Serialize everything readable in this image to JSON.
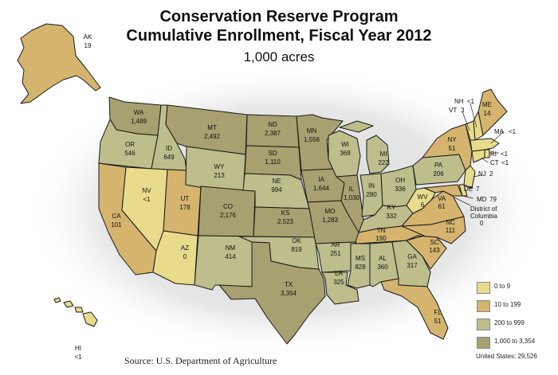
{
  "title": {
    "line1": "Conservation Reserve Program",
    "line2": "Cumulative Enrollment, Fiscal Year 2012",
    "units": "1,000 acres"
  },
  "colors": {
    "c0": "#e8dc8c",
    "c1": "#d5b46e",
    "c2": "#bdbe8c",
    "c3": "#a7a070",
    "stroke": "#1a1a1a",
    "shadow": "#e4e4e4"
  },
  "legend": [
    {
      "label": "0 to 9",
      "color_key": "c0"
    },
    {
      "label": "10 to 199",
      "color_key": "c1"
    },
    {
      "label": "200 to 999",
      "color_key": "c2"
    },
    {
      "label": "1,000 to 3,354",
      "color_key": "c3"
    }
  ],
  "total": "United States: 29,526",
  "source": "Source: U.S. Department of Agriculture",
  "states": {
    "AK": {
      "abbr": "AK",
      "value": "19"
    },
    "HI": {
      "abbr": "HI",
      "value": "<1"
    },
    "WA": {
      "abbr": "WA",
      "value": "1,489"
    },
    "OR": {
      "abbr": "OR",
      "value": "546"
    },
    "CA": {
      "abbr": "CA",
      "value": "101"
    },
    "ID": {
      "abbr": "ID",
      "value": "649"
    },
    "NV": {
      "abbr": "NV",
      "value": "<1"
    },
    "UT": {
      "abbr": "UT",
      "value": "178"
    },
    "AZ": {
      "abbr": "AZ",
      "value": "0"
    },
    "MT": {
      "abbr": "MT",
      "value": "2,492"
    },
    "WY": {
      "abbr": "WY",
      "value": "213"
    },
    "CO": {
      "abbr": "CO",
      "value": "2,176"
    },
    "NM": {
      "abbr": "NM",
      "value": "414"
    },
    "ND": {
      "abbr": "ND",
      "value": "2,387"
    },
    "SD": {
      "abbr": "SD",
      "value": "1,110"
    },
    "NE": {
      "abbr": "NE",
      "value": "994"
    },
    "KS": {
      "abbr": "KS",
      "value": "2,523"
    },
    "OK": {
      "abbr": "OK",
      "value": "819"
    },
    "TX": {
      "abbr": "TX",
      "value": "3,354"
    },
    "MN": {
      "abbr": "MN",
      "value": "1,556"
    },
    "IA": {
      "abbr": "IA",
      "value": "1,644"
    },
    "MO": {
      "abbr": "MO",
      "value": "1,283"
    },
    "AR": {
      "abbr": "AR",
      "value": "251"
    },
    "LA": {
      "abbr": "LA",
      "value": "325"
    },
    "WI": {
      "abbr": "WI",
      "value": "368"
    },
    "IL": {
      "abbr": "IL",
      "value": "1,030"
    },
    "MI": {
      "abbr": "MI",
      "value": "222"
    },
    "IN": {
      "abbr": "IN",
      "value": "280"
    },
    "OH": {
      "abbr": "OH",
      "value": "336"
    },
    "KY": {
      "abbr": "KY",
      "value": "332"
    },
    "TN": {
      "abbr": "TN",
      "value": "190"
    },
    "MS": {
      "abbr": "MS",
      "value": "828"
    },
    "AL": {
      "abbr": "AL",
      "value": "360"
    },
    "GA": {
      "abbr": "GA",
      "value": "317"
    },
    "FL": {
      "abbr": "FL",
      "value": "51"
    },
    "SC": {
      "abbr": "SC",
      "value": "143"
    },
    "NC": {
      "abbr": "NC",
      "value": "111"
    },
    "VA": {
      "abbr": "VA",
      "value": "61"
    },
    "WV": {
      "abbr": "WV",
      "value": "6"
    },
    "PA": {
      "abbr": "PA",
      "value": "206"
    },
    "NY": {
      "abbr": "NY",
      "value": "51"
    },
    "ME": {
      "abbr": "ME",
      "value": "14"
    },
    "VT": {
      "abbr": "VT",
      "value": "3"
    },
    "NH": {
      "abbr": "NH",
      "value": "<1"
    },
    "MA": {
      "abbr": "MA",
      "value": "<1"
    },
    "RI": {
      "abbr": "RI",
      "value": "<1"
    },
    "CT": {
      "abbr": "CT",
      "value": "<1"
    },
    "NJ": {
      "abbr": "NJ",
      "value": "2"
    },
    "DE": {
      "abbr": "DE",
      "value": "7"
    },
    "MD": {
      "abbr": "MD",
      "value": "79"
    },
    "DC": {
      "name_line1": "District of",
      "name_line2": "Columbia",
      "value": "0"
    }
  }
}
